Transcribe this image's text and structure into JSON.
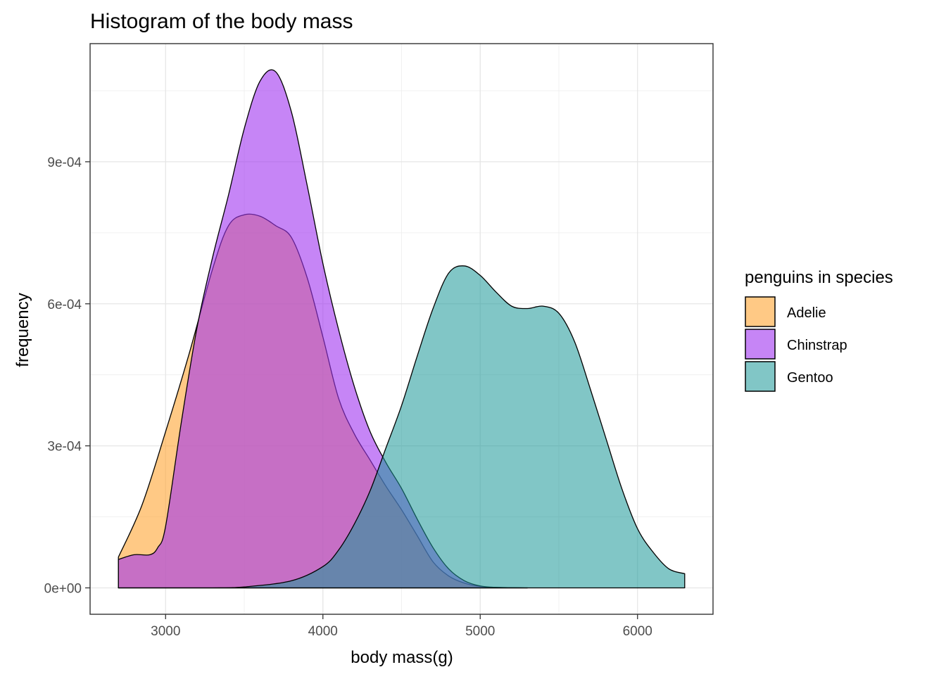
{
  "chart_data": {
    "type": "area",
    "subtype": "density",
    "title": "Histogram of the body mass",
    "xlabel": "body mass(g)",
    "ylabel": "frequency",
    "xlim": [
      2520,
      6480
    ],
    "ylim": [
      -5.575e-05,
      0.0011495
    ],
    "x_ticks": [
      3000,
      4000,
      5000,
      6000
    ],
    "x_tick_labels": [
      "3000",
      "4000",
      "5000",
      "6000"
    ],
    "y_ticks": [
      0,
      0.0003,
      0.0006,
      0.0009
    ],
    "y_tick_labels": [
      "0e+00",
      "3e-04",
      "6e-04",
      "9e-04"
    ],
    "grid": true,
    "legend": {
      "title": "penguins in species",
      "position": "right",
      "items": [
        "Adelie",
        "Chinstrap",
        "Gentoo"
      ]
    },
    "series": [
      {
        "name": "Adelie",
        "color": "#FFA534",
        "opacity": 0.6,
        "points": [
          [
            2700,
            6.5e-05
          ],
          [
            2850,
            0.000175
          ],
          [
            3000,
            0.00033
          ],
          [
            3150,
            0.000495
          ],
          [
            3300,
            0.000675
          ],
          [
            3400,
            0.000765
          ],
          [
            3500,
            0.000788
          ],
          [
            3600,
            0.000785
          ],
          [
            3700,
            0.000765
          ],
          [
            3800,
            0.00074
          ],
          [
            3900,
            0.000655
          ],
          [
            4000,
            0.00053
          ],
          [
            4100,
            0.0004
          ],
          [
            4200,
            0.000325
          ],
          [
            4300,
            0.00027
          ],
          [
            4400,
            0.000215
          ],
          [
            4500,
            0.000165
          ],
          [
            4600,
            0.00011
          ],
          [
            4700,
            5.5e-05
          ],
          [
            4800,
            2.5e-05
          ],
          [
            4900,
            1e-05
          ],
          [
            5000,
            3e-06
          ],
          [
            5100,
            1e-06
          ],
          [
            5300,
            0
          ]
        ]
      },
      {
        "name": "Chinstrap",
        "color": "#A034F0",
        "opacity": 0.6,
        "points": [
          [
            2700,
            6e-05
          ],
          [
            2800,
            7e-05
          ],
          [
            2900,
            7e-05
          ],
          [
            2950,
            8.5e-05
          ],
          [
            3000,
            0.00013
          ],
          [
            3100,
            0.00035
          ],
          [
            3200,
            0.00055
          ],
          [
            3300,
            0.0007
          ],
          [
            3400,
            0.00083
          ],
          [
            3500,
            0.00097
          ],
          [
            3600,
            0.00107
          ],
          [
            3700,
            0.00109
          ],
          [
            3800,
            0.001005
          ],
          [
            3900,
            0.00085
          ],
          [
            4000,
            0.000685
          ],
          [
            4100,
            0.000545
          ],
          [
            4200,
            0.000425
          ],
          [
            4300,
            0.00033
          ],
          [
            4400,
            0.000265
          ],
          [
            4500,
            0.00021
          ],
          [
            4600,
            0.000145
          ],
          [
            4700,
            8.5e-05
          ],
          [
            4800,
            4e-05
          ],
          [
            4900,
            1.5e-05
          ],
          [
            5000,
            4e-06
          ],
          [
            5100,
            1e-06
          ],
          [
            5300,
            0
          ]
        ]
      },
      {
        "name": "Gentoo",
        "color": "#1A9797",
        "opacity": 0.55,
        "points": [
          [
            2700,
            0
          ],
          [
            3300,
            0
          ],
          [
            3500,
            2e-06
          ],
          [
            3800,
            1.5e-05
          ],
          [
            4000,
            4.5e-05
          ],
          [
            4100,
            8e-05
          ],
          [
            4200,
            0.000135
          ],
          [
            4300,
            0.000205
          ],
          [
            4400,
            0.000295
          ],
          [
            4500,
            0.000385
          ],
          [
            4600,
            0.00049
          ],
          [
            4700,
            0.00059
          ],
          [
            4800,
            0.000665
          ],
          [
            4900,
            0.00068
          ],
          [
            5000,
            0.00066
          ],
          [
            5100,
            0.000625
          ],
          [
            5200,
            0.000595
          ],
          [
            5300,
            0.00059
          ],
          [
            5400,
            0.000595
          ],
          [
            5500,
            0.00058
          ],
          [
            5600,
            0.00052
          ],
          [
            5700,
            0.00042
          ],
          [
            5800,
            0.000315
          ],
          [
            5900,
            0.00021
          ],
          [
            6000,
            0.000125
          ],
          [
            6100,
            7.5e-05
          ],
          [
            6200,
            4e-05
          ],
          [
            6300,
            3e-05
          ]
        ]
      }
    ]
  }
}
